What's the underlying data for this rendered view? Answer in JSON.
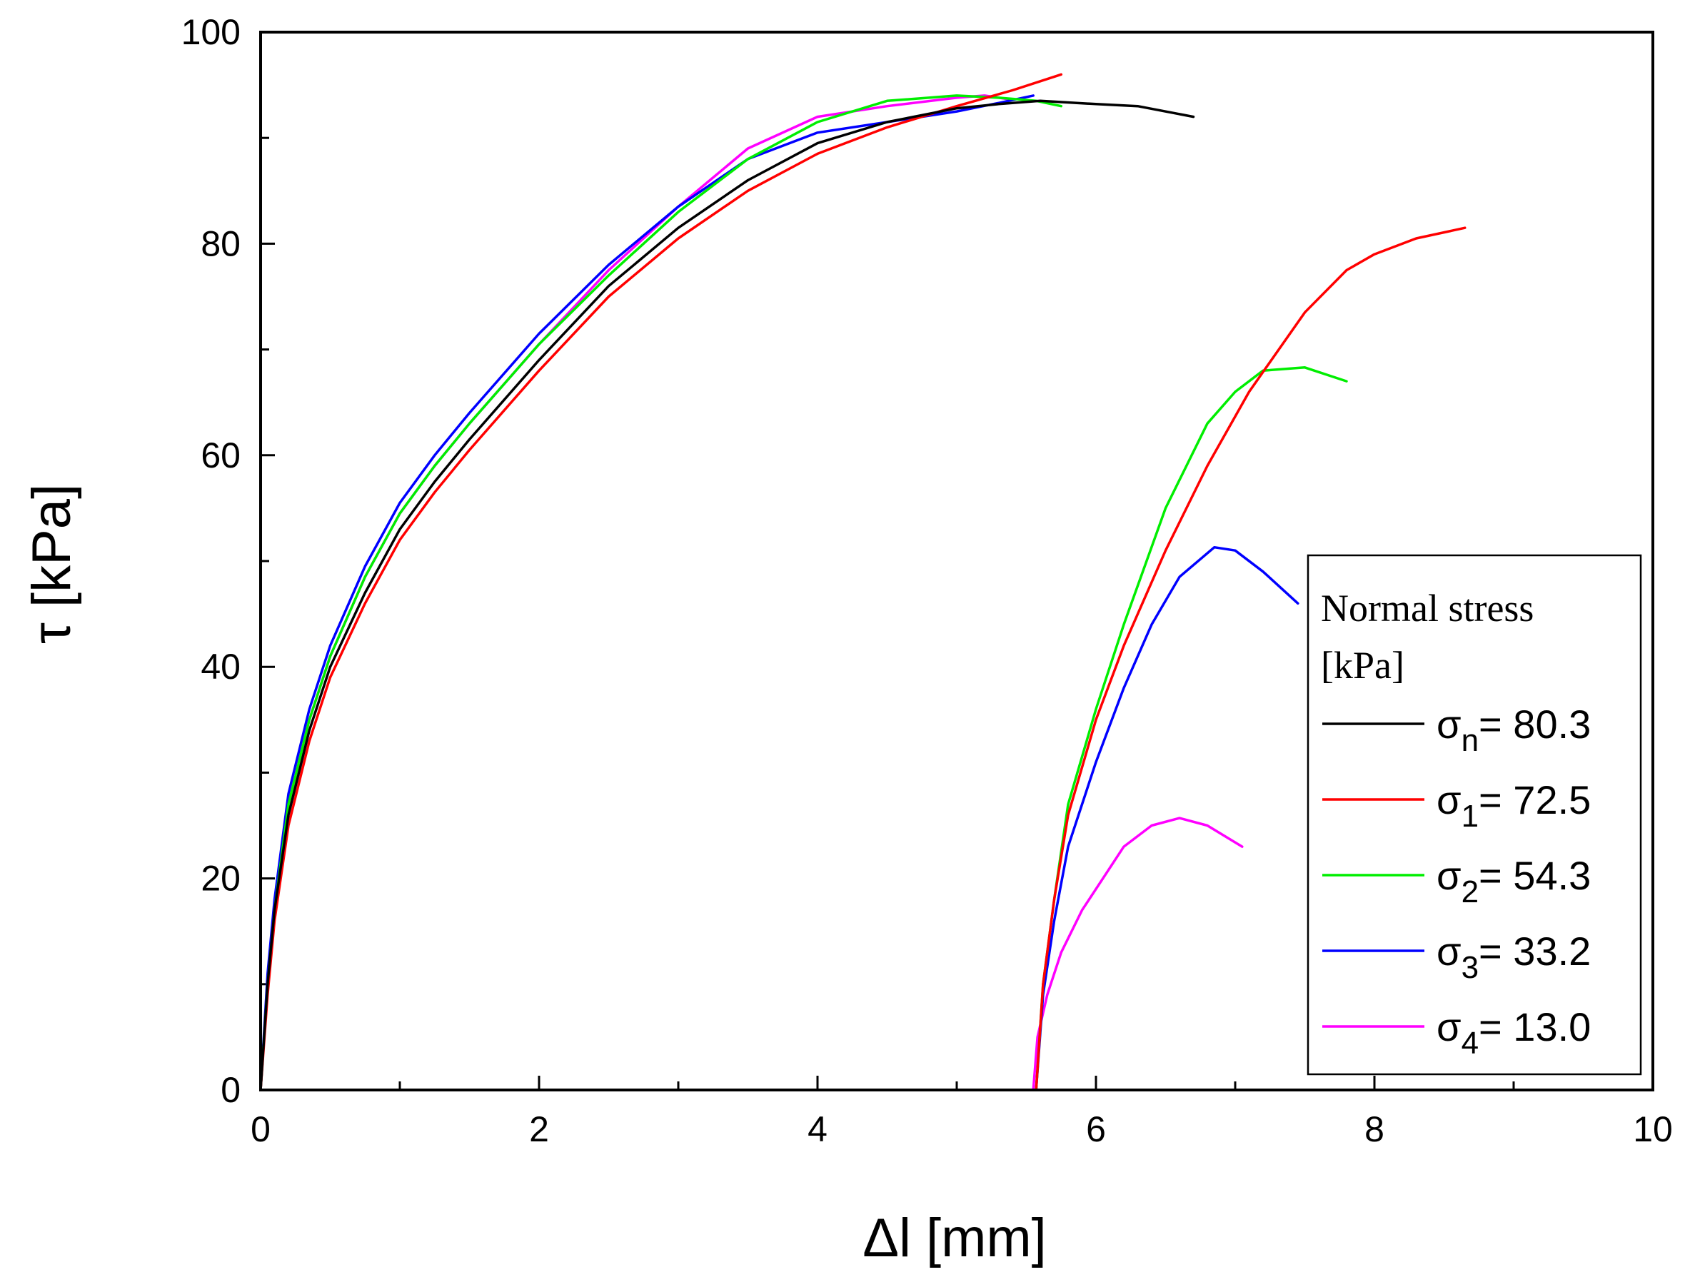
{
  "chart_data": {
    "type": "line",
    "title": "",
    "xlabel": "Δl [mm]",
    "ylabel": "τ [kPa]",
    "xlim": [
      0,
      10
    ],
    "ylim": [
      0,
      100
    ],
    "x_ticks": [
      "0",
      "2",
      "4",
      "6",
      "8",
      "10"
    ],
    "y_ticks": [
      "0",
      "20",
      "40",
      "60",
      "80",
      "100"
    ],
    "grid": false,
    "legend": {
      "position": "bottom-right",
      "title_line1": "Normal stress",
      "title_line2": "[kPa]"
    },
    "series": [
      {
        "name": "σn= 80.3",
        "sym": "σ",
        "sub": "n",
        "value": "= 80.3",
        "color": "#000000",
        "x": [
          0,
          0.05,
          0.1,
          0.2,
          0.35,
          0.5,
          0.75,
          1.0,
          1.25,
          1.5,
          2.0,
          2.5,
          3.0,
          3.5,
          4.0,
          4.5,
          5.0,
          5.3,
          5.6,
          6.0,
          6.3,
          6.7
        ],
        "y": [
          0,
          10,
          17,
          26,
          34,
          40,
          47,
          53,
          57.5,
          61.5,
          69,
          76,
          81.5,
          86,
          89.5,
          91.5,
          92.8,
          93.2,
          93.5,
          93.2,
          93,
          92
        ]
      },
      {
        "name": "σ1= 72.5",
        "sym": "σ",
        "sub": "1",
        "value": "= 72.5",
        "color": "#ff0000",
        "x": [
          0,
          0.05,
          0.1,
          0.2,
          0.35,
          0.5,
          0.75,
          1.0,
          1.25,
          1.5,
          2.0,
          2.5,
          3.0,
          3.5,
          4.0,
          4.5,
          5.0,
          5.4,
          5.75,
          null,
          5.57,
          5.62,
          5.7,
          5.8,
          6.0,
          6.2,
          6.5,
          6.8,
          7.1,
          7.5,
          7.8,
          8.0,
          8.3,
          8.65
        ],
        "y": [
          0,
          9,
          16,
          25,
          33,
          39,
          46,
          52,
          56.5,
          60.5,
          68,
          75,
          80.5,
          85,
          88.5,
          91,
          93,
          94.5,
          96,
          null,
          0,
          10,
          18,
          26,
          35,
          42,
          51,
          59,
          66,
          73.5,
          77.5,
          79,
          80.5,
          81.5
        ]
      },
      {
        "name": "σ2= 54.3",
        "sym": "σ",
        "sub": "2",
        "value": "= 54.3",
        "color": "#00ee00",
        "x": [
          0,
          0.05,
          0.1,
          0.2,
          0.35,
          0.5,
          0.75,
          1.0,
          1.25,
          1.5,
          2.0,
          2.5,
          3.0,
          3.5,
          4.0,
          4.5,
          5.0,
          5.3,
          5.57,
          5.75,
          null,
          5.57,
          5.62,
          5.7,
          5.8,
          6.0,
          6.2,
          6.5,
          6.8,
          7.0,
          7.2,
          7.5,
          7.8
        ],
        "y": [
          0,
          10,
          17,
          27,
          35,
          41,
          48.5,
          54.5,
          59,
          63,
          70.5,
          77,
          83,
          88,
          91.5,
          93.5,
          94,
          93.8,
          93.5,
          93,
          null,
          0,
          10,
          18,
          27,
          36,
          44,
          55,
          63,
          66,
          68,
          68.3,
          67
        ]
      },
      {
        "name": "σ3= 33.2",
        "sym": "σ",
        "sub": "3",
        "value": "= 33.2",
        "color": "#0000ff",
        "x": [
          0,
          0.05,
          0.1,
          0.2,
          0.35,
          0.5,
          0.75,
          1.0,
          1.25,
          1.5,
          2.0,
          2.5,
          3.0,
          3.5,
          4.0,
          4.5,
          5.0,
          5.3,
          5.55,
          null,
          5.57,
          5.62,
          5.7,
          5.8,
          6.0,
          6.2,
          6.4,
          6.6,
          6.85,
          7.0,
          7.2,
          7.45
        ],
        "y": [
          0,
          11,
          18,
          28,
          36,
          42,
          49.5,
          55.5,
          60,
          64,
          71.5,
          78,
          83.5,
          88,
          90.5,
          91.5,
          92.5,
          93.3,
          94,
          null,
          0,
          9,
          16,
          23,
          31,
          38,
          44,
          48.5,
          51.3,
          51,
          49,
          46
        ]
      },
      {
        "name": "σ4= 13.0",
        "sym": "σ",
        "sub": "4",
        "value": "= 13.0",
        "color": "#ff00ff",
        "x": [
          0,
          0.05,
          0.1,
          0.2,
          0.35,
          0.5,
          0.75,
          1.0,
          1.25,
          1.5,
          2.0,
          2.5,
          3.0,
          3.5,
          4.0,
          4.5,
          5.0,
          5.2,
          5.4,
          null,
          5.55,
          5.58,
          5.65,
          5.75,
          5.9,
          6.05,
          6.2,
          6.4,
          6.6,
          6.8,
          7.05
        ],
        "y": [
          0,
          10,
          17,
          27,
          35,
          41,
          48.5,
          54.5,
          59,
          63,
          70.5,
          77.5,
          83.5,
          89,
          92,
          93,
          93.8,
          94,
          93.6,
          null,
          0,
          5,
          9,
          13,
          17,
          20,
          23,
          25,
          25.7,
          25,
          23
        ]
      }
    ]
  }
}
